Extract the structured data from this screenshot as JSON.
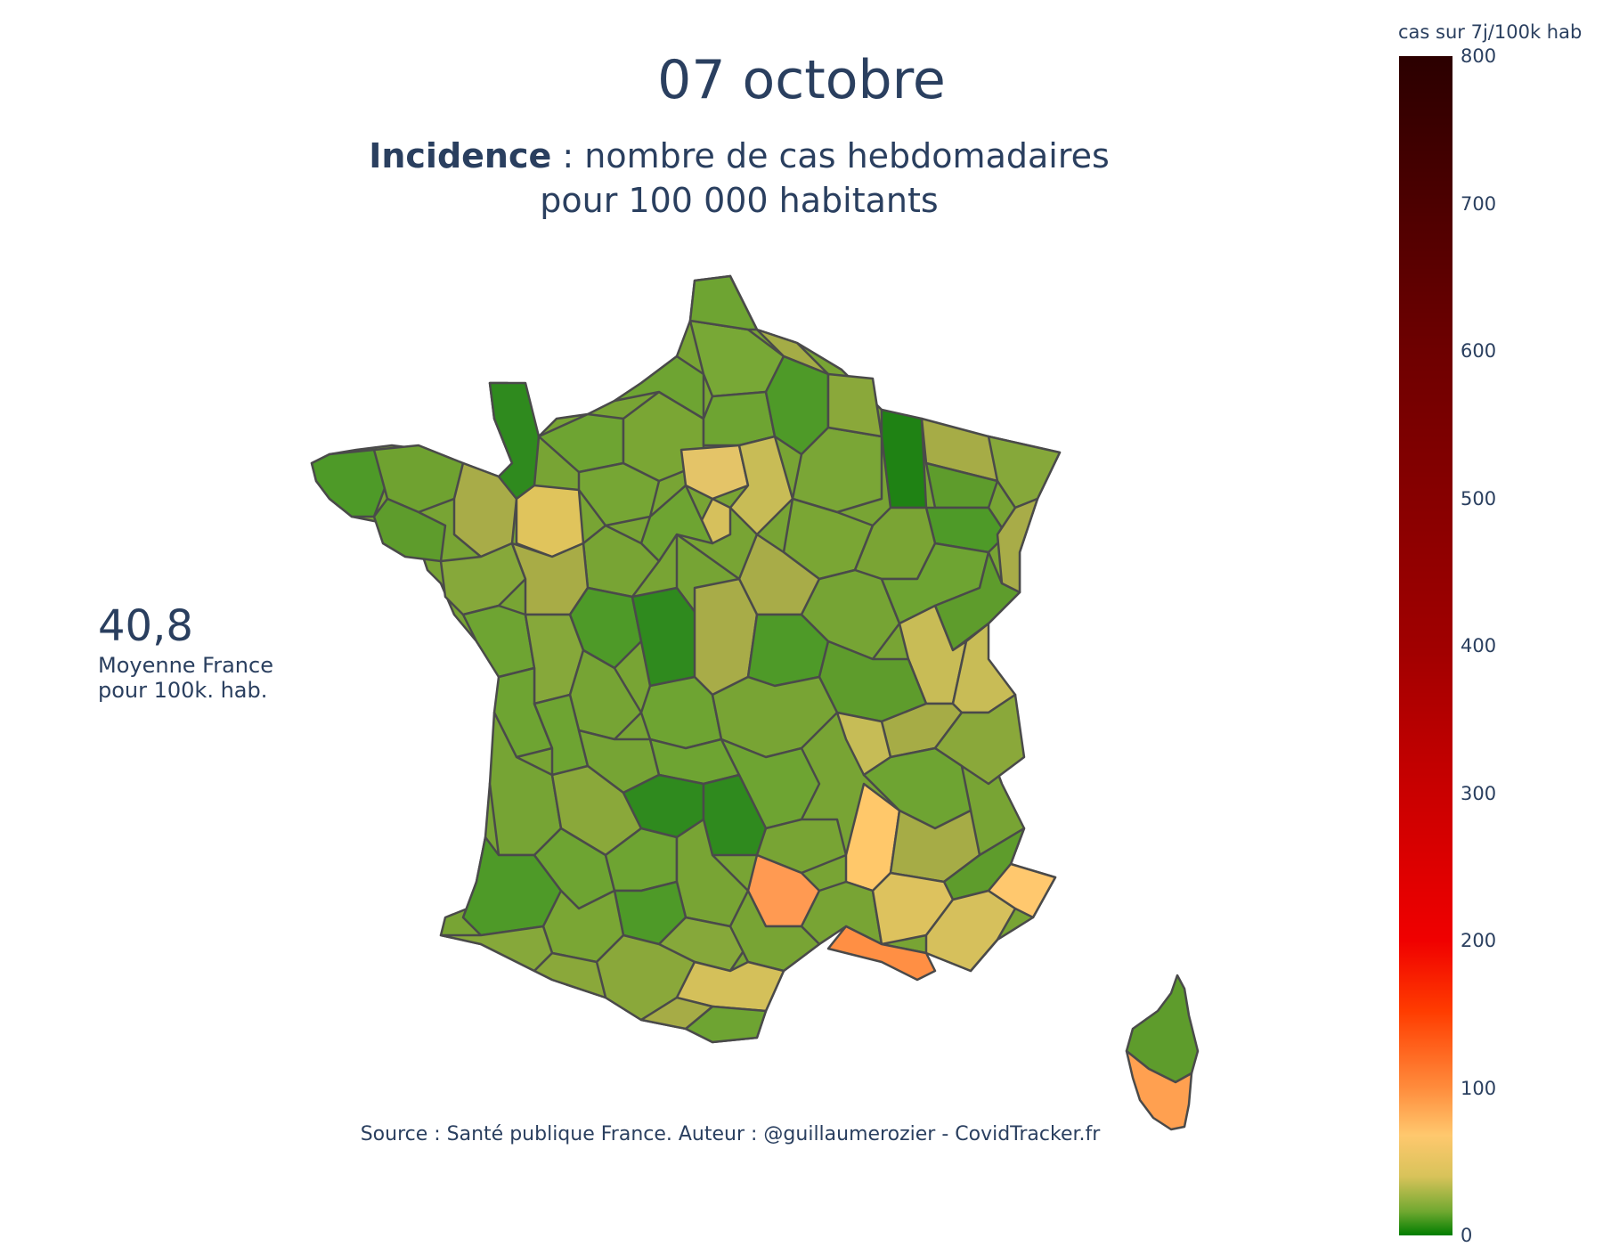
{
  "header": {
    "date_title": "07 octobre",
    "subtitle_bold": "Incidence",
    "subtitle_rest": " : nombre de cas hebdomadaires",
    "subtitle_line2": "pour 100 000 habitants"
  },
  "average": {
    "value": "40,8",
    "label_line1": "Moyenne France",
    "label_line2": "pour 100k. hab."
  },
  "source": "Source : Santé publique France. Auteur : @guillaumerozier - CovidTracker.fr",
  "colorbar": {
    "title": "cas sur 7j/100k hab",
    "ticks": [
      "800",
      "700",
      "600",
      "500",
      "400",
      "300",
      "200",
      "100",
      "0"
    ],
    "range": [
      0,
      800
    ]
  },
  "map_data": {
    "type": "choropleth",
    "region": "France (départements)",
    "scale_colors": [
      "#007d00",
      "#6fa830",
      "#d8c35a",
      "#ffc86e",
      "#ff8c3c",
      "#ff3c00",
      "#f00000",
      "#a00000",
      "#2b0000"
    ],
    "border_color": "#4a4a4a"
  }
}
